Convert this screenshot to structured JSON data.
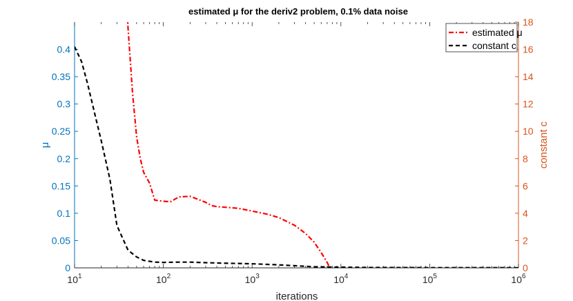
{
  "chart_data": {
    "type": "line",
    "title": "estimated μ for the deriv2 problem, 0.1% data noise",
    "xlabel": "iterations",
    "ylabel_left": "μ",
    "ylabel_right": "constant c",
    "xscale": "log",
    "xlim": [
      10,
      1000000
    ],
    "x_ticks": [
      {
        "base": "10",
        "exp": "1",
        "value": 10
      },
      {
        "base": "10",
        "exp": "2",
        "value": 100
      },
      {
        "base": "10",
        "exp": "3",
        "value": 1000
      },
      {
        "base": "10",
        "exp": "4",
        "value": 10000
      },
      {
        "base": "10",
        "exp": "5",
        "value": 100000
      },
      {
        "base": "10",
        "exp": "6",
        "value": 1000000
      }
    ],
    "ylim_left": [
      0,
      0.45
    ],
    "y_ticks_left": [
      "0",
      "0.05",
      "0.1",
      "0.15",
      "0.2",
      "0.25",
      "0.3",
      "0.35",
      "0.4"
    ],
    "ylim_right": [
      0,
      18
    ],
    "y_ticks_right": [
      "0",
      "2",
      "4",
      "6",
      "8",
      "10",
      "12",
      "14",
      "16",
      "18"
    ],
    "grid": false,
    "legend_position": "top-right",
    "series": [
      {
        "name": "estimated μ",
        "axis": "left",
        "color": "#FF0000",
        "style": "dash-dot",
        "points": [
          [
            38,
            0.5
          ],
          [
            40,
            0.44
          ],
          [
            45,
            0.32
          ],
          [
            50,
            0.24
          ],
          [
            55,
            0.2
          ],
          [
            60,
            0.175
          ],
          [
            70,
            0.155
          ],
          [
            80,
            0.124
          ],
          [
            100,
            0.122
          ],
          [
            120,
            0.121
          ],
          [
            150,
            0.13
          ],
          [
            200,
            0.131
          ],
          [
            250,
            0.125
          ],
          [
            300,
            0.12
          ],
          [
            350,
            0.114
          ],
          [
            400,
            0.112
          ],
          [
            500,
            0.111
          ],
          [
            700,
            0.109
          ],
          [
            1000,
            0.104
          ],
          [
            1500,
            0.098
          ],
          [
            2000,
            0.092
          ],
          [
            3000,
            0.078
          ],
          [
            4000,
            0.063
          ],
          [
            5000,
            0.047
          ],
          [
            6000,
            0.028
          ],
          [
            7000,
            0.01
          ],
          [
            7500,
            0.0
          ]
        ]
      },
      {
        "name": "constant c",
        "axis": "right",
        "color": "#000000",
        "style": "dashed",
        "points": [
          [
            10,
            16.2
          ],
          [
            12,
            15.1
          ],
          [
            14,
            13.5
          ],
          [
            17,
            11.2
          ],
          [
            20,
            9.3
          ],
          [
            25,
            6.5
          ],
          [
            30,
            3.1
          ],
          [
            40,
            1.3
          ],
          [
            50,
            0.8
          ],
          [
            60,
            0.55
          ],
          [
            80,
            0.42
          ],
          [
            100,
            0.4
          ],
          [
            150,
            0.42
          ],
          [
            200,
            0.42
          ],
          [
            300,
            0.38
          ],
          [
            500,
            0.34
          ],
          [
            1000,
            0.3
          ],
          [
            2000,
            0.22
          ],
          [
            5000,
            0.08
          ],
          [
            10000,
            0.05
          ],
          [
            20000,
            0.03
          ],
          [
            50000,
            0.02
          ],
          [
            100000,
            0.015
          ],
          [
            1000000,
            0.01
          ]
        ]
      }
    ]
  }
}
